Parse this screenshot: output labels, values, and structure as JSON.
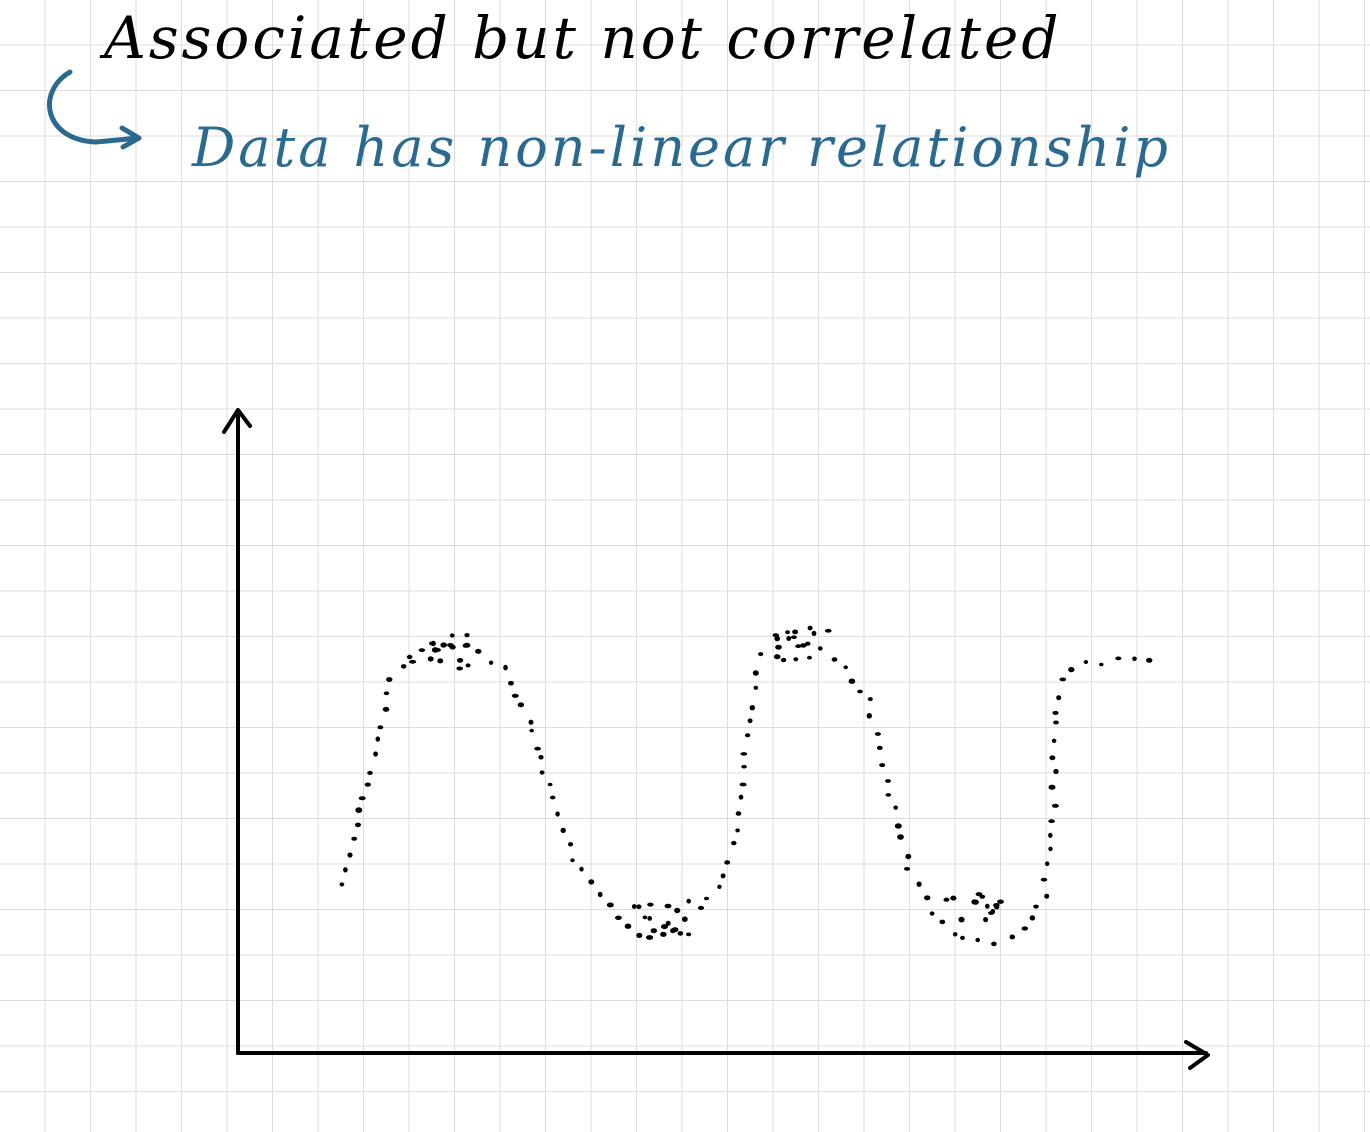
{
  "note": {
    "title": "Associated but not correlated",
    "subtitle": "Data has non-linear relationship",
    "title_color": "#000000",
    "subtitle_color": "#2b6a90"
  },
  "sketch": {
    "arrow_icon": "curved-arrow-icon",
    "ink_color": "#000000",
    "trend": "wave"
  }
}
